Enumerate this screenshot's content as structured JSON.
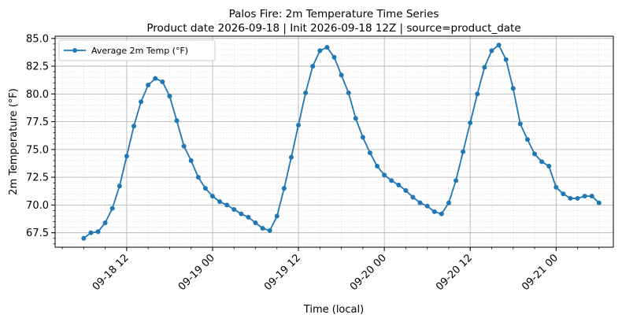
{
  "chart_data": {
    "type": "line",
    "title": "Palos Fire: 2m Temperature Time Series",
    "subtitle": "Product date 2026-09-18 | Init 2026-09-18 12Z | source=product_date",
    "xlabel": "Time (local)",
    "ylabel": "2m Temperature (°F)",
    "xlim": [
      "2026-09-18 02:00",
      "2026-09-21 08:00"
    ],
    "ylim": [
      66.2,
      85.2
    ],
    "x_ticks": [
      "2026-09-18 12:00",
      "2026-09-19 00:00",
      "2026-09-19 12:00",
      "2026-09-20 00:00",
      "2026-09-20 12:00",
      "2026-09-21 00:00"
    ],
    "x_tick_labels": [
      "09-18 12",
      "09-19 00",
      "09-19 12",
      "09-20 00",
      "09-20 12",
      "09-21 00"
    ],
    "y_ticks": [
      67.5,
      70.0,
      72.5,
      75.0,
      77.5,
      80.0,
      82.5,
      85.0
    ],
    "y_tick_labels": [
      "67.5",
      "70.0",
      "72.5",
      "75.0",
      "77.5",
      "80.0",
      "82.5",
      "85.0"
    ],
    "grid": true,
    "legend_position": "top-left",
    "colors": {
      "series": "#1f77b4",
      "major_grid": "#b0b0b0",
      "minor_grid": "#d9d9d9"
    },
    "start": "2026-09-18 06:00",
    "step_hours": 1,
    "series": [
      {
        "name": "Average 2m Temp (°F)",
        "values": [
          67.0,
          67.5,
          67.6,
          68.4,
          69.7,
          71.7,
          74.4,
          77.1,
          79.3,
          80.8,
          81.4,
          81.1,
          79.8,
          77.6,
          75.3,
          74.0,
          72.5,
          71.5,
          70.8,
          70.3,
          70.0,
          69.6,
          69.2,
          68.9,
          68.4,
          67.9,
          67.7,
          69.0,
          71.5,
          74.3,
          77.2,
          80.1,
          82.5,
          83.9,
          84.2,
          83.3,
          81.7,
          80.1,
          77.8,
          76.1,
          74.7,
          73.5,
          72.7,
          72.2,
          71.8,
          71.3,
          70.7,
          70.2,
          69.9,
          69.4,
          69.2,
          70.2,
          72.2,
          74.8,
          77.4,
          80.0,
          82.4,
          83.9,
          84.4,
          83.1,
          80.5,
          77.3,
          75.9,
          74.6,
          73.9,
          73.5,
          71.6,
          71.0,
          70.6,
          70.6,
          70.8,
          70.8,
          70.2
        ]
      }
    ]
  }
}
